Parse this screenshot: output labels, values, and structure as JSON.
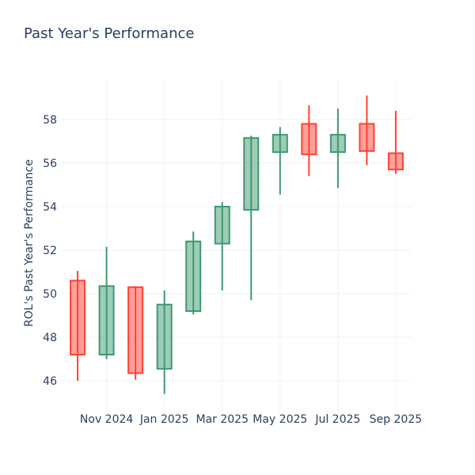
{
  "chart_data": {
    "type": "candlestick",
    "title": "Past Year's Performance",
    "ylabel": "ROL's Past Year's Performance",
    "xlabel": "",
    "x": [
      "Oct 2024",
      "Nov 2024",
      "Dec 2024",
      "Jan 2025",
      "Feb 2025",
      "Mar 2025",
      "Apr 2025",
      "May 2025",
      "Jun 2025",
      "Jul 2025",
      "Aug 2025",
      "Sep 2025"
    ],
    "open": [
      50.6,
      47.2,
      50.3,
      46.55,
      49.2,
      52.3,
      53.85,
      56.5,
      57.8,
      56.5,
      57.8,
      56.45
    ],
    "high": [
      51.05,
      52.15,
      50.35,
      50.15,
      52.85,
      54.2,
      57.25,
      57.65,
      58.65,
      58.5,
      59.1,
      58.4
    ],
    "low": [
      46.0,
      47.0,
      46.05,
      45.4,
      49.05,
      50.15,
      49.7,
      54.55,
      55.4,
      54.85,
      55.9,
      55.5
    ],
    "close": [
      47.2,
      50.35,
      46.35,
      49.5,
      52.4,
      54.0,
      57.15,
      57.3,
      56.4,
      57.3,
      56.55,
      55.7
    ],
    "y_ticks": [
      46,
      48,
      50,
      52,
      54,
      56,
      58
    ],
    "x_tick_labels": [
      "Nov 2024",
      "Jan 2025",
      "Mar 2025",
      "May 2025",
      "Jul 2025",
      "Sep 2025"
    ],
    "x_tick_indices": [
      1,
      3,
      5,
      7,
      9,
      11
    ],
    "y_range": [
      44.8,
      59.85
    ],
    "grid": true,
    "legend": "none"
  },
  "colors": {
    "increasing": "#3D9970",
    "decreasing": "#FF4136",
    "body_fill_opacity": 0.5,
    "grid": "#EEF2F8",
    "text": "#2a3f5f",
    "background": "#ffffff"
  }
}
